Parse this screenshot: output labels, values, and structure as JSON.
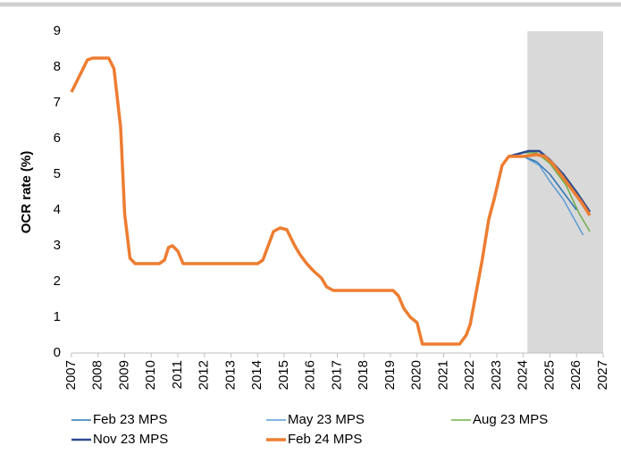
{
  "chart_data": {
    "type": "line",
    "ylabel": "OCR rate (%)",
    "xlim": [
      2007,
      2027
    ],
    "xticks": [
      2007,
      2008,
      2009,
      2010,
      2011,
      2012,
      2013,
      2014,
      2015,
      2016,
      2017,
      2018,
      2019,
      2020,
      2021,
      2022,
      2023,
      2024,
      2025,
      2026,
      2027
    ],
    "ylim": [
      0,
      9
    ],
    "yticks": [
      0,
      1,
      2,
      3,
      4,
      5,
      6,
      7,
      8,
      9
    ],
    "shade_xlim": [
      2024.15,
      2027
    ],
    "shade_color": "#d9d9d9",
    "series": [
      {
        "name": "Feb 23 MPS",
        "color": "#2e75b6",
        "line_width": 1.5,
        "x": [
          2023.45,
          2024.0,
          2024.5,
          2025.0,
          2025.5,
          2026.0
        ],
        "values": [
          5.5,
          5.5,
          5.35,
          5.0,
          4.5,
          4.0
        ]
      },
      {
        "name": "May 23 MPS",
        "color": "#5b9bd5",
        "line_width": 1.5,
        "x": [
          2023.45,
          2024.0,
          2024.6,
          2025.0,
          2025.5,
          2026.25
        ],
        "values": [
          5.5,
          5.5,
          5.25,
          4.8,
          4.3,
          3.3
        ]
      },
      {
        "name": "Aug 23 MPS",
        "color": "#70ad47",
        "line_width": 1.5,
        "x": [
          2023.45,
          2024.0,
          2024.5,
          2025.0,
          2025.6,
          2026.1,
          2026.5
        ],
        "values": [
          5.5,
          5.6,
          5.6,
          5.3,
          4.7,
          3.9,
          3.4
        ]
      },
      {
        "name": "Nov 23 MPS",
        "color": "#2f4b8f",
        "line_width": 2.5,
        "x": [
          2023.45,
          2024.2,
          2024.6,
          2025.0,
          2025.5,
          2026.0,
          2026.5
        ],
        "values": [
          5.5,
          5.65,
          5.65,
          5.4,
          5.0,
          4.5,
          3.95
        ]
      },
      {
        "name": "Feb 24 MPS",
        "color": "#ed7d31",
        "line_width": 3.5,
        "x": [
          2007.0,
          2007.6,
          2007.8,
          2008.4,
          2008.6,
          2008.85,
          2009.0,
          2009.2,
          2009.4,
          2010.3,
          2010.5,
          2010.65,
          2010.8,
          2011.0,
          2011.2,
          2014.0,
          2014.2,
          2014.4,
          2014.6,
          2014.85,
          2015.1,
          2015.4,
          2015.6,
          2015.85,
          2016.1,
          2016.4,
          2016.6,
          2016.85,
          2019.1,
          2019.3,
          2019.5,
          2019.75,
          2020.0,
          2020.2,
          2021.6,
          2021.85,
          2022.0,
          2022.2,
          2022.45,
          2022.7,
          2022.9,
          2023.2,
          2023.45,
          2024.0,
          2024.5,
          2024.8,
          2025.1,
          2025.4,
          2025.8,
          2026.2,
          2026.5
        ],
        "values": [
          7.3,
          8.2,
          8.25,
          8.25,
          7.95,
          6.3,
          3.9,
          2.65,
          2.5,
          2.5,
          2.6,
          2.95,
          3.0,
          2.85,
          2.5,
          2.5,
          2.6,
          3.0,
          3.4,
          3.5,
          3.45,
          3.0,
          2.75,
          2.5,
          2.3,
          2.1,
          1.85,
          1.75,
          1.75,
          1.6,
          1.25,
          1.0,
          0.85,
          0.25,
          0.25,
          0.5,
          0.8,
          1.6,
          2.6,
          3.75,
          4.3,
          5.25,
          5.5,
          5.5,
          5.55,
          5.5,
          5.3,
          5.0,
          4.6,
          4.2,
          3.85
        ]
      }
    ]
  }
}
